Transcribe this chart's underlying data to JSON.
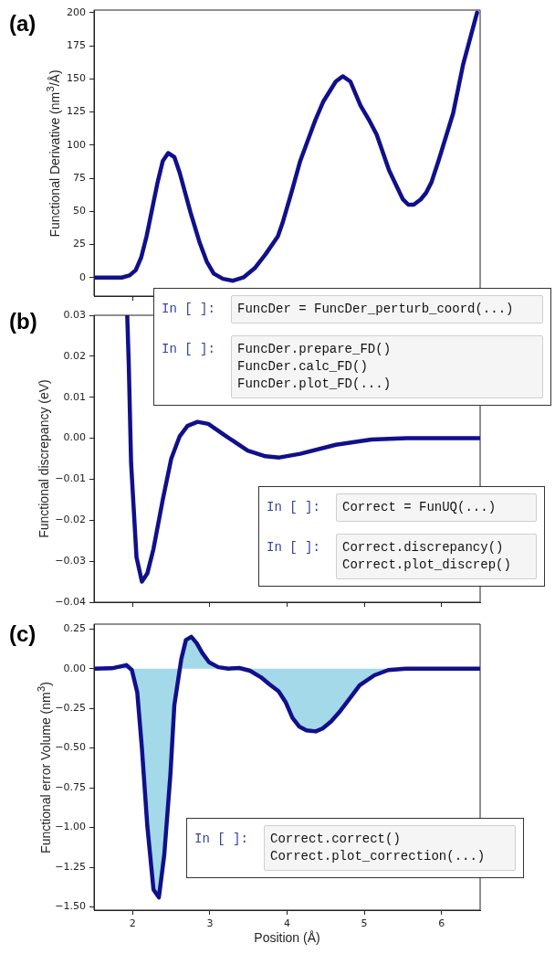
{
  "chart_data": [
    {
      "type": "line",
      "title": "(a)",
      "ylabel": "Functional Derivative (nm$^{3}$/Å)",
      "xlim": [
        1.5,
        6.5
      ],
      "xticks": [
        2,
        3,
        4,
        5,
        6
      ],
      "ylim": [
        -14,
        202
      ],
      "yticks": [
        0,
        25,
        50,
        75,
        100,
        125,
        150,
        175,
        200
      ],
      "tick_labels": "y",
      "grid": false,
      "legend": false,
      "marker": "none",
      "line_style": "solid",
      "annotations": [
        "In [ ]:",
        "FuncDer = FuncDer_perturb_coord(...)",
        "In [ ]:",
        "FuncDer.prepare_FD()\nFuncDer.calc_FD()\nFuncDer.plot_FD(...)"
      ],
      "series": [
        {
          "color": "#10108c",
          "x": [
            1.5,
            1.86,
            1.96,
            2.04,
            2.11,
            2.18,
            2.32,
            2.39,
            2.46,
            2.54,
            2.61,
            2.75,
            2.87,
            2.96,
            3.05,
            3.17,
            3.3,
            3.44,
            3.58,
            3.72,
            3.88,
            3.94,
            4.06,
            4.17,
            4.36,
            4.47,
            4.63,
            4.72,
            4.82,
            4.95,
            5.07,
            5.16,
            5.32,
            5.5,
            5.57,
            5.64,
            5.73,
            5.8,
            5.87,
            5.96,
            6.15,
            6.28,
            6.46
          ],
          "values": [
            0,
            0,
            1.6,
            5.6,
            15,
            31,
            71,
            88,
            94,
            91,
            79,
            49,
            26,
            12,
            3,
            -1,
            -2.4,
            0.3,
            7,
            17.5,
            31,
            41,
            65,
            88,
            118,
            133,
            148,
            152,
            148,
            130,
            118,
            108,
            81,
            59,
            55,
            55,
            59,
            64,
            72,
            88,
            124,
            161,
            200
          ]
        }
      ]
    },
    {
      "type": "line",
      "title": "(b)",
      "ylabel": "Functional discrepancy (eV)",
      "xlim": [
        1.5,
        6.5
      ],
      "xticks": [
        2,
        3,
        4,
        5,
        6
      ],
      "ylim": [
        -0.04,
        0.03
      ],
      "yticks": [
        {
          "value": -0.04,
          "label": "−0.04"
        },
        {
          "value": -0.03,
          "label": "−0.03"
        },
        {
          "value": -0.02,
          "label": "−0.02"
        },
        {
          "value": -0.01,
          "label": "−0.01"
        },
        {
          "value": 0,
          "label": "0.00"
        },
        {
          "value": 0.01,
          "label": "0.01"
        },
        {
          "value": 0.02,
          "label": "0.02"
        },
        {
          "value": 0.03,
          "label": "0.03"
        }
      ],
      "tick_labels": "y",
      "grid": false,
      "legend": false,
      "marker": "none",
      "line_style": "solid",
      "annotations": [
        "In [ ]:",
        "Correct = FunUQ(...)",
        "In [ ]:",
        "Correct.discrepancy()\nCorrect.plot_discrep()"
      ],
      "series": [
        {
          "color": "#10108c",
          "x": [
            1.93,
            1.95,
            1.98,
            2.05,
            2.12,
            2.19,
            2.27,
            2.39,
            2.5,
            2.61,
            2.71,
            2.84,
            2.98,
            3.21,
            3.49,
            3.72,
            3.9,
            4.17,
            4.63,
            5.09,
            5.55,
            6.5
          ],
          "values": [
            0.03,
            0.018,
            -0.006,
            -0.029,
            -0.035,
            -0.033,
            -0.027,
            -0.015,
            -0.005,
            0.0005,
            0.003,
            0.004,
            0.0035,
            0.0005,
            -0.003,
            -0.0044,
            -0.0047,
            -0.0038,
            -0.0016,
            -0.0003,
            0,
            0
          ]
        }
      ]
    },
    {
      "type": "area",
      "title": "(c)",
      "xlabel": "Position (Å)",
      "ylabel": "Functional error Volume (nm$^{3}$)",
      "xlim": [
        1.5,
        6.5
      ],
      "xticks": [
        2,
        3,
        4,
        5,
        6
      ],
      "ylim": [
        -1.52,
        0.28
      ],
      "yticks": [
        {
          "value": -1.5,
          "label": "−1.50"
        },
        {
          "value": -1.25,
          "label": "−1.25"
        },
        {
          "value": -1,
          "label": "−1.00"
        },
        {
          "value": -0.75,
          "label": "−0.75"
        },
        {
          "value": -0.5,
          "label": "−0.50"
        },
        {
          "value": -0.25,
          "label": "−0.25"
        },
        {
          "value": 0,
          "label": "0.00"
        },
        {
          "value": 0.25,
          "label": "0.25"
        }
      ],
      "grid": false,
      "legend": false,
      "marker": "none",
      "line_style": "solid",
      "annotations": [
        "In [ ]:",
        "Correct.correct()\nCorrect.plot_correction(...)"
      ],
      "series": [
        {
          "color": "#10108c",
          "x": [
            1.5,
            1.73,
            1.92,
            1.99,
            2.06,
            2.12,
            2.19,
            2.27,
            2.34,
            2.41,
            2.49,
            2.54,
            2.63,
            2.69,
            2.76,
            2.83,
            2.9,
            2.99,
            3.11,
            3.24,
            3.38,
            3.52,
            3.66,
            3.77,
            3.89,
            3.98,
            4.07,
            4.16,
            4.25,
            4.37,
            4.46,
            4.57,
            4.69,
            4.94,
            5.13,
            5.31,
            5.54,
            6.5
          ],
          "values": [
            0,
            0.002,
            0.022,
            -0.009,
            -0.15,
            -0.5,
            -0.99,
            -1.39,
            -1.44,
            -1.17,
            -0.66,
            -0.23,
            0.06,
            0.18,
            0.2,
            0.16,
            0.1,
            0.04,
            0.009,
            0,
            0.004,
            -0.013,
            -0.054,
            -0.098,
            -0.143,
            -0.21,
            -0.31,
            -0.366,
            -0.388,
            -0.395,
            -0.377,
            -0.333,
            -0.266,
            -0.105,
            -0.042,
            -0.009,
            0,
            0
          ]
        }
      ]
    }
  ]
}
